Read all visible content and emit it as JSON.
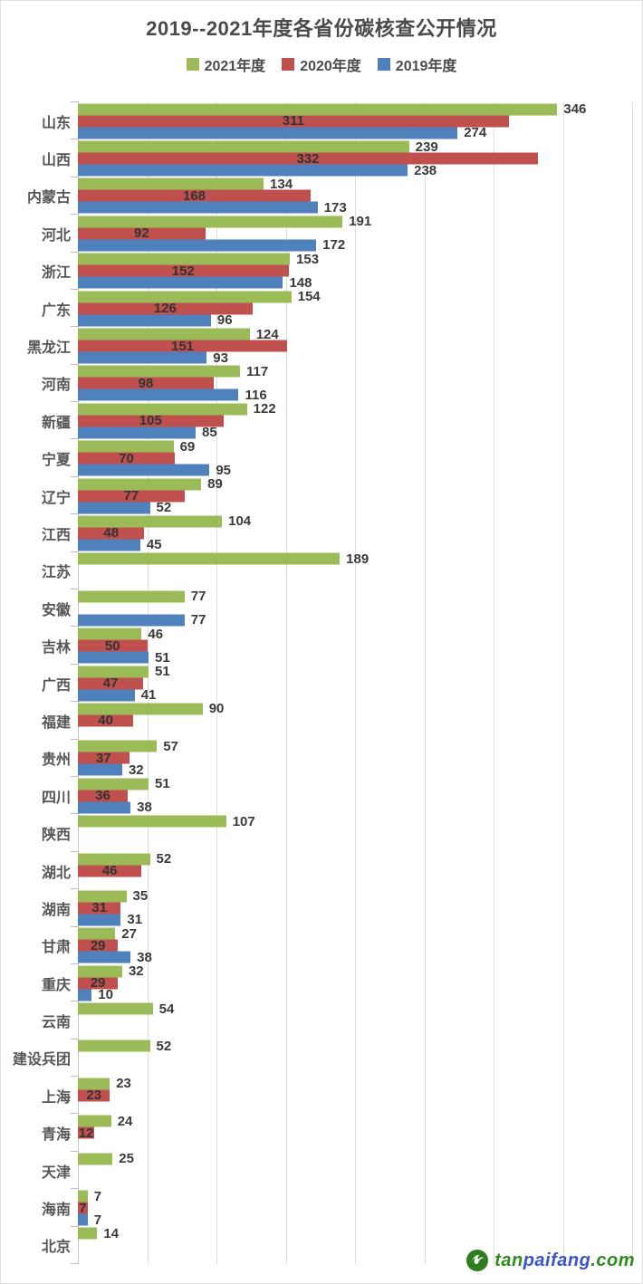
{
  "chart_data": {
    "type": "bar",
    "orientation": "horizontal",
    "title": "2019--2021年度各省份碳核查公开情况",
    "legend_position": "top",
    "xlim": [
      0,
      400
    ],
    "gridline_interval": 50,
    "grid": true,
    "categories": [
      "山东",
      "山西",
      "内蒙古",
      "河北",
      "浙江",
      "广东",
      "黑龙江",
      "河南",
      "新疆",
      "宁夏",
      "辽宁",
      "江西",
      "江苏",
      "安徽",
      "吉林",
      "广西",
      "福建",
      "贵州",
      "四川",
      "陕西",
      "湖北",
      "湖南",
      "甘肃",
      "重庆",
      "云南",
      "建设兵团",
      "上海",
      "青海",
      "天津",
      "海南",
      "北京"
    ],
    "series": [
      {
        "name": "2021年度",
        "color": "#9BBB59",
        "label_position": "outside-end",
        "values": [
          346,
          239,
          134,
          191,
          153,
          154,
          124,
          117,
          122,
          69,
          89,
          104,
          189,
          77,
          46,
          51,
          90,
          57,
          51,
          107,
          52,
          35,
          27,
          32,
          54,
          52,
          23,
          24,
          25,
          7,
          14
        ]
      },
      {
        "name": "2020年度",
        "color": "#C0504D",
        "label_position": "inside-center",
        "values": [
          311,
          332,
          168,
          92,
          152,
          126,
          151,
          98,
          105,
          70,
          77,
          48,
          null,
          null,
          50,
          47,
          40,
          37,
          36,
          null,
          46,
          31,
          29,
          29,
          null,
          null,
          23,
          12,
          null,
          7,
          null
        ]
      },
      {
        "name": "2019年度",
        "color": "#4F81BD",
        "label_position": "outside-end",
        "values": [
          274,
          238,
          173,
          172,
          148,
          96,
          93,
          116,
          85,
          95,
          52,
          45,
          null,
          77,
          51,
          41,
          null,
          32,
          38,
          null,
          null,
          31,
          38,
          10,
          null,
          null,
          null,
          null,
          null,
          7,
          null
        ]
      }
    ]
  },
  "watermark": {
    "segments": [
      {
        "text": "tan",
        "color": "#2e8b1e"
      },
      {
        "text": "paifang",
        "color": "#3b55c4"
      },
      {
        "text": ".com",
        "color": "#2e8b1e"
      }
    ],
    "logo_color": "#2e7d1e"
  }
}
